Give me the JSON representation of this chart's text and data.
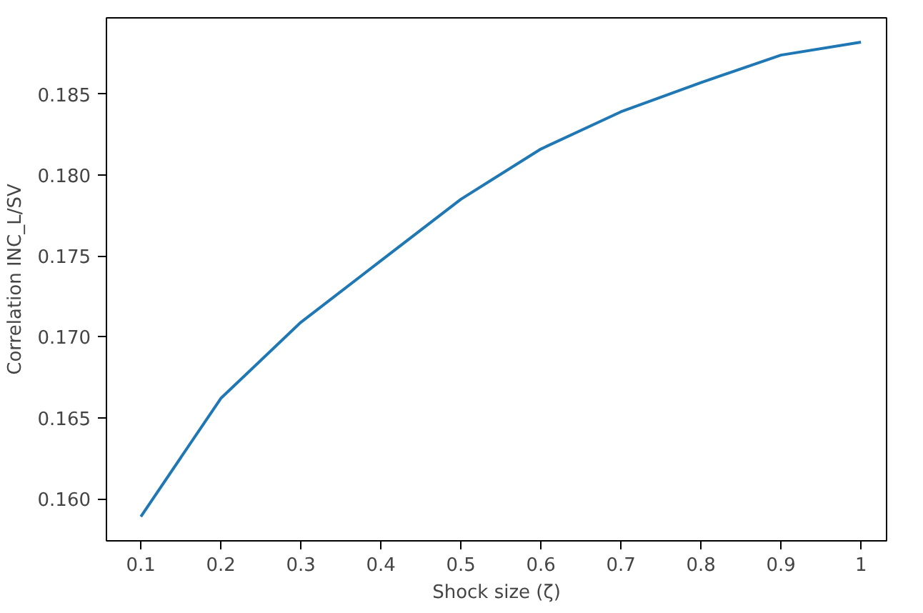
{
  "chart_data": {
    "type": "line",
    "xlabel": "Shock size (ζ)",
    "ylabel": "Correlation INC_L/SV",
    "x": [
      0.1,
      0.2,
      0.3,
      0.4,
      0.5,
      0.6,
      0.7,
      0.8,
      0.9,
      1
    ],
    "series": [
      {
        "color": "#1f77b4",
        "values": [
          0.1589,
          0.1662,
          0.1709,
          0.1747,
          0.1785,
          0.1816,
          0.1839,
          0.1857,
          0.1874,
          0.1882
        ]
      }
    ],
    "xlim": [
      0.057,
      1.032
    ],
    "ylim": [
      0.1574,
      0.1897
    ],
    "xticks": [
      0.1,
      0.2,
      0.3,
      0.4,
      0.5,
      0.6,
      0.7,
      0.8,
      0.9,
      1
    ],
    "yticks": [
      {
        "value": 0.16,
        "label": "0.160"
      },
      0.165,
      {
        "value": 0.17,
        "label": "0.170"
      },
      0.175,
      {
        "value": 0.18,
        "label": "0.180"
      },
      0.185
    ],
    "grid": false,
    "marker": "none",
    "line_style": "solid"
  }
}
